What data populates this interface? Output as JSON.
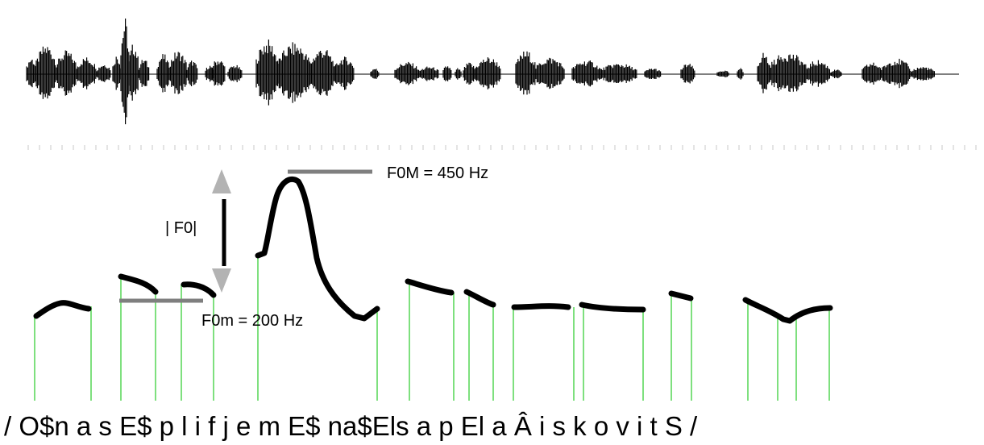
{
  "labels": {
    "f0_max": "F0M = 450 Hz",
    "f0_min": "F0m = 200 Hz",
    "f0_range": "| F0|"
  },
  "transcription": "/ O$n a  s  E$  p  l i   f   j e m E$ na$Els a p  El  a  Â    i  s  k  o    v   i   t   S /",
  "colors": {
    "waveform": "#000000",
    "pitch_contour": "#000000",
    "reference_lines": "#7f7f7f",
    "segment_boundaries": "#7ee07e",
    "range_arrow": "#b3b3b3"
  }
}
